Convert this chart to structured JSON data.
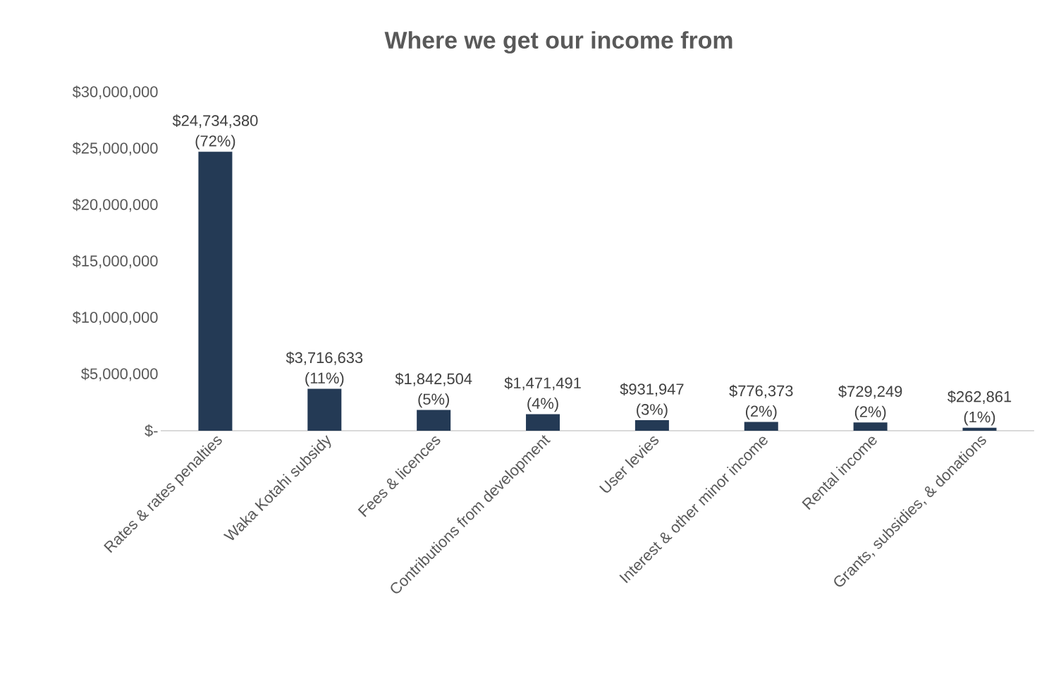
{
  "chart_data": {
    "type": "bar",
    "title": "Where we get our income from",
    "categories": [
      "Rates & rates penalties",
      "Waka Kotahi subsidy",
      "Fees & licences",
      "Contributions from development",
      "User levies",
      "Interest & other minor income",
      "Rental income",
      "Grants, subsidies, & donations"
    ],
    "values": [
      24734380,
      3716633,
      1842504,
      1471491,
      931947,
      776373,
      729249,
      262861
    ],
    "value_labels": [
      "$24,734,380 (72%)",
      "$3,716,633 (11%)",
      "$1,842,504 (5%)",
      "$1,471,491 (4%)",
      "$931,947 (3%)",
      "$776,373 (2%)",
      "$729,249 (2%)",
      "$262,861 (1%)"
    ],
    "color": "#243a55",
    "ylim": [
      0,
      30000000
    ],
    "yticks": [
      {
        "value": 0,
        "label": "$-"
      },
      {
        "value": 5000000,
        "label": "$5,000,000"
      },
      {
        "value": 10000000,
        "label": "$10,000,000"
      },
      {
        "value": 15000000,
        "label": "$15,000,000"
      },
      {
        "value": 20000000,
        "label": "$20,000,000"
      },
      {
        "value": 25000000,
        "label": "$25,000,000"
      },
      {
        "value": 30000000,
        "label": "$30,000,000"
      }
    ],
    "data_labels": false
  }
}
